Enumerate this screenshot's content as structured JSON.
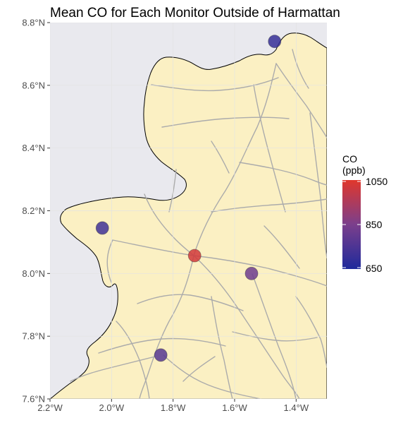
{
  "chart_data": {
    "type": "scatter",
    "title": "Mean CO for Each Monitor Outside of Harmattan",
    "xlabel": "",
    "ylabel": "",
    "x_range": [
      -2.2,
      -1.3
    ],
    "y_range": [
      7.6,
      8.8
    ],
    "x_ticks": [
      {
        "value": -2.2,
        "label": "2.2°W"
      },
      {
        "value": -2.0,
        "label": "2.0°W"
      },
      {
        "value": -1.8,
        "label": "1.8°W"
      },
      {
        "value": -1.6,
        "label": "1.6°W"
      },
      {
        "value": -1.4,
        "label": "1.4°W"
      }
    ],
    "y_ticks": [
      {
        "value": 7.6,
        "label": "7.6°N"
      },
      {
        "value": 7.8,
        "label": "7.8°N"
      },
      {
        "value": 8.0,
        "label": "8.0°N"
      },
      {
        "value": 8.2,
        "label": "8.2°N"
      },
      {
        "value": 8.4,
        "label": "8.4°N"
      },
      {
        "value": 8.6,
        "label": "8.6°N"
      },
      {
        "value": 8.8,
        "label": "8.8°N"
      }
    ],
    "grid": true,
    "legend": {
      "placement": "right",
      "title_lines": [
        "CO",
        "(ppb)"
      ],
      "labels": [
        "1050",
        "850",
        "650"
      ],
      "range": [
        650,
        1050
      ],
      "low_color": "#1f2a9b",
      "mid_color": "#7b3f8c",
      "high_color": "#e0372c"
    },
    "colors": {
      "panel_background": "#e9e9ee",
      "land": "#fbf0c3",
      "roads": "#ababab",
      "coast": "#000000",
      "grid": "#ffffff"
    },
    "points": [
      {
        "lon": -1.47,
        "lat": 8.74,
        "co": 700
      },
      {
        "lon": -2.03,
        "lat": 8.145,
        "co": 720
      },
      {
        "lon": -1.73,
        "lat": 8.057,
        "co": 1020
      },
      {
        "lon": -1.545,
        "lat": 8.0,
        "co": 820
      },
      {
        "lon": -1.84,
        "lat": 7.74,
        "co": 770
      }
    ]
  }
}
